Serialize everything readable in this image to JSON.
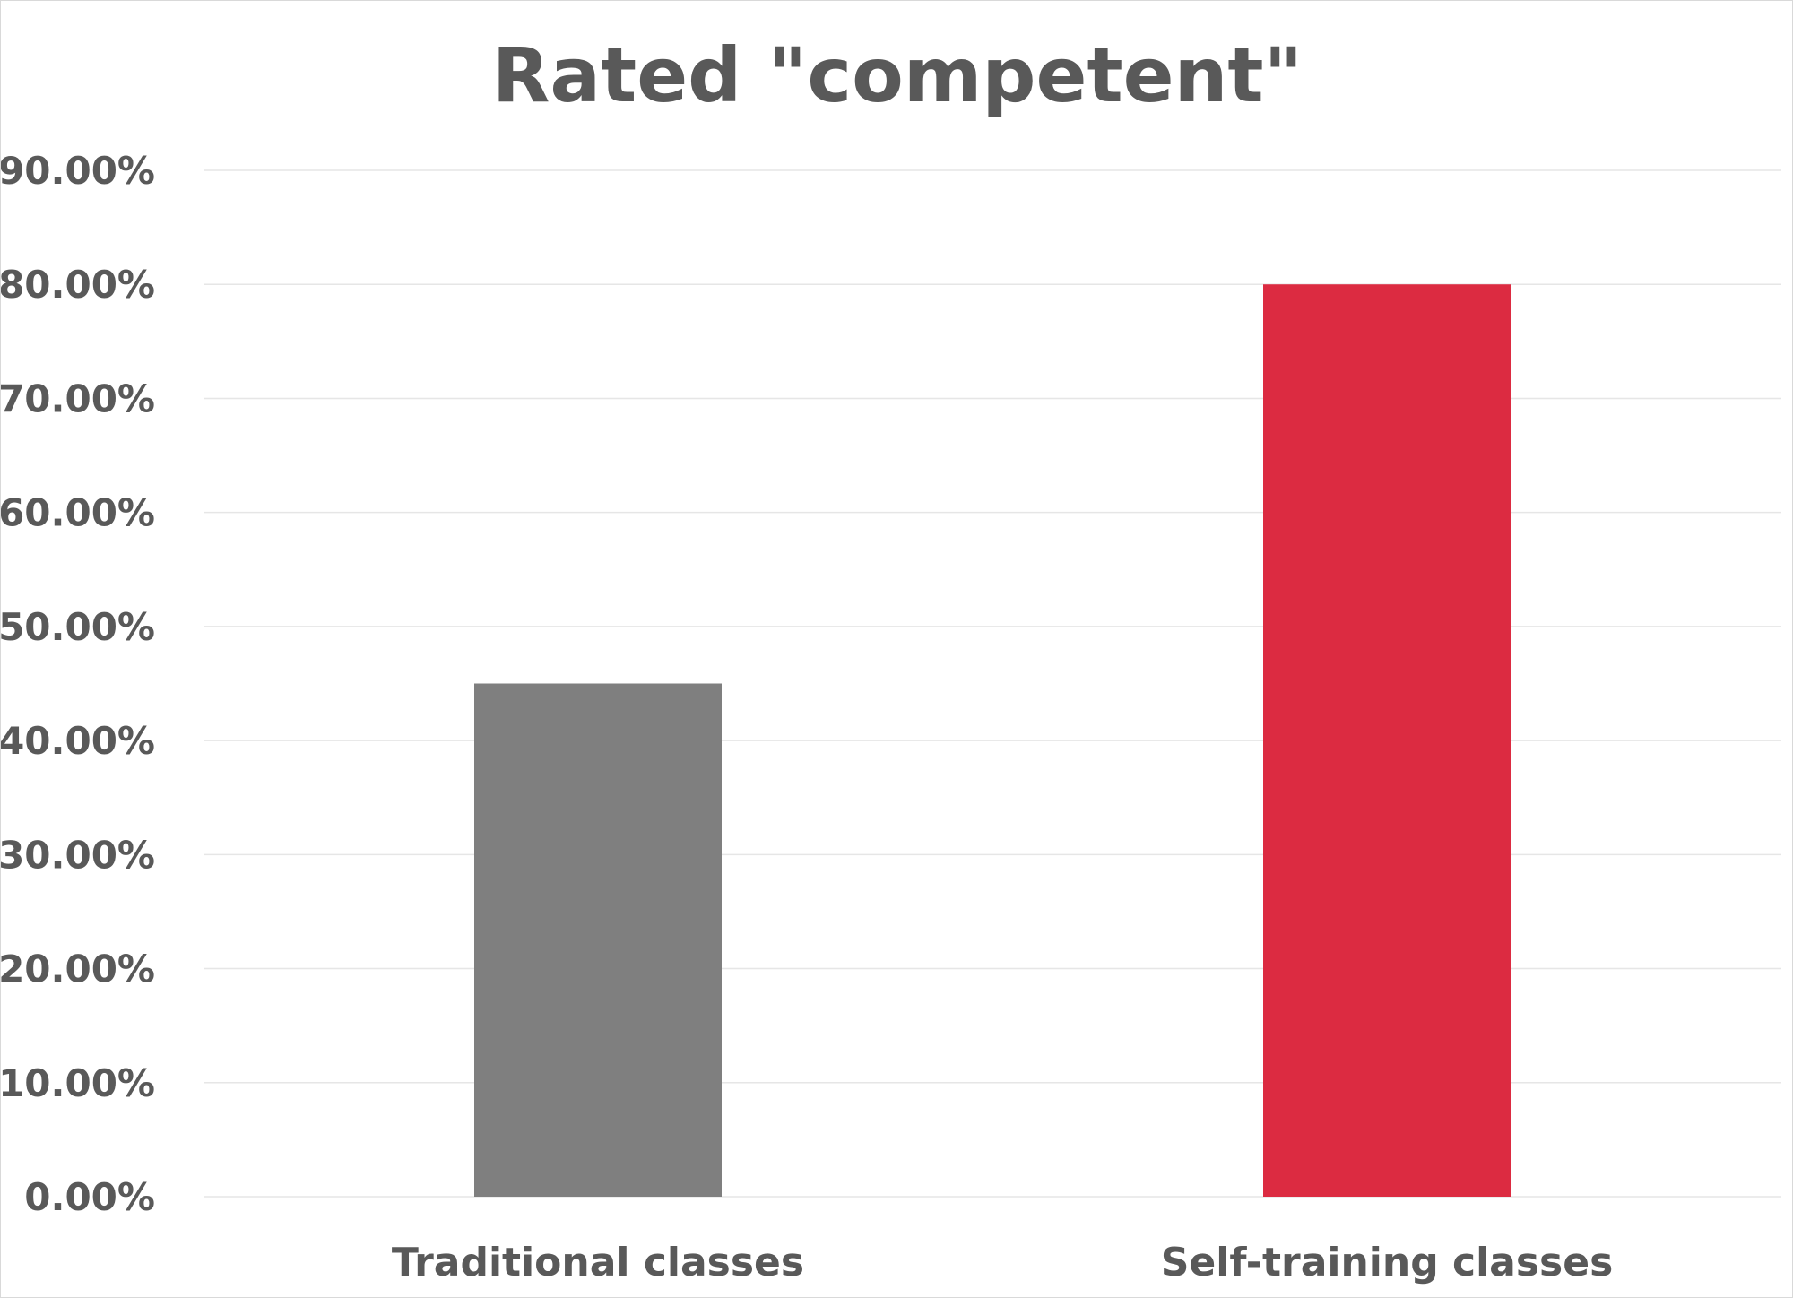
{
  "chart_data": {
    "type": "bar",
    "title": "Rated \"competent\"",
    "categories": [
      "Traditional classes",
      "Self-training classes"
    ],
    "values": [
      0.45,
      0.8
    ],
    "colors": [
      "#7f7f7f",
      "#dc2b41"
    ],
    "ylim": [
      0,
      0.9
    ],
    "yticks": [
      0,
      0.1,
      0.2,
      0.3,
      0.4,
      0.5,
      0.6,
      0.7,
      0.8,
      0.9
    ],
    "ytick_labels": [
      "0.00%",
      "10.00%",
      "20.00%",
      "30.00%",
      "40.00%",
      "50.00%",
      "60.00%",
      "70.00%",
      "80.00%",
      "90.00%"
    ],
    "xlabel": "",
    "ylabel": "",
    "grid": true,
    "legend": "none"
  }
}
